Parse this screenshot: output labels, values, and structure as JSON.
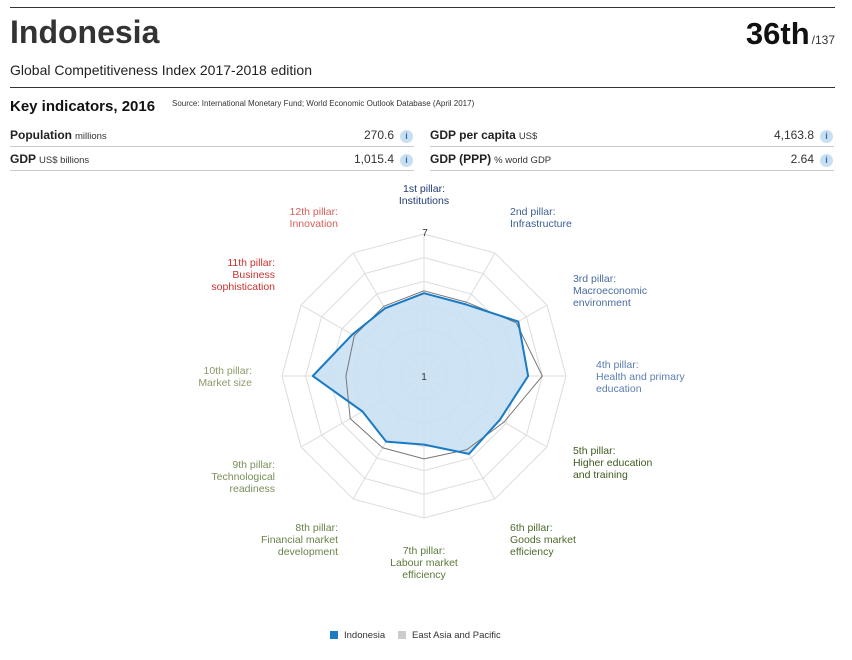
{
  "header": {
    "country": "Indonesia",
    "rank": "36th",
    "rank_total": "/137",
    "subtitle": "Global Competitiveness Index",
    "edition": "2017-2018 edition"
  },
  "key_indicators": {
    "title": "Key indicators, 2016",
    "source": "Source: International Monetary Fund; World Economic Outlook Database (April 2017)",
    "items": [
      {
        "label": "Population",
        "unit": "millions",
        "value": "270.6"
      },
      {
        "label": "GDP per capita",
        "unit": "US$",
        "value": "4,163.8"
      },
      {
        "label": "GDP",
        "unit": "US$ billions",
        "value": "1,015.4"
      },
      {
        "label": "GDP (PPP)",
        "unit": "% world GDP",
        "value": "2.64"
      }
    ],
    "info_icon": "i"
  },
  "chart_data": {
    "type": "radar",
    "axis_min": 1,
    "axis_max": 7,
    "axis_min_label": "1",
    "axis_max_label": "7",
    "categories": [
      {
        "lines": [
          "1st pillar:",
          "Institutions"
        ],
        "color": "#1f3b73"
      },
      {
        "lines": [
          "2nd pillar:",
          "Infrastructure"
        ],
        "color": "#3d5d95"
      },
      {
        "lines": [
          "3rd pillar:",
          "Macroeconomic",
          "environment"
        ],
        "color": "#4a6c9e"
      },
      {
        "lines": [
          "4th pillar:",
          "Health and primary",
          "education"
        ],
        "color": "#5a7fb1"
      },
      {
        "lines": [
          "5th pillar:",
          "Higher education",
          "and training"
        ],
        "color": "#3e5a1f"
      },
      {
        "lines": [
          "6th pillar:",
          "Goods market",
          "efficiency"
        ],
        "color": "#4c6a2b"
      },
      {
        "lines": [
          "7th pillar:",
          "Labour market",
          "efficiency"
        ],
        "color": "#5c7a3a"
      },
      {
        "lines": [
          "8th pillar:",
          "Financial market",
          "development"
        ],
        "color": "#6a834a"
      },
      {
        "lines": [
          "9th pillar:",
          "Technological",
          "readiness"
        ],
        "color": "#7a8f5a"
      },
      {
        "lines": [
          "10th pillar:",
          "Market size"
        ],
        "color": "#8a9a6a"
      },
      {
        "lines": [
          "11th pillar:",
          "Business",
          "sophistication"
        ],
        "color": "#c8332e"
      },
      {
        "lines": [
          "12th pillar:",
          "Innovation"
        ],
        "color": "#d65e58"
      }
    ],
    "series": [
      {
        "name": "Indonesia",
        "values": [
          4.5,
          4.5,
          5.6,
          5.4,
          4.7,
          4.8,
          3.9,
          4.2,
          4.0,
          5.7,
          4.5,
          4.3
        ],
        "color": "#1a7bc4",
        "fill": "#c9e0f3"
      },
      {
        "name": "East Asia and Pacific",
        "values": [
          4.6,
          4.6,
          5.5,
          6.0,
          4.9,
          4.6,
          4.5,
          4.5,
          4.6,
          4.3,
          4.4,
          4.4
        ],
        "color": "#777777"
      }
    ],
    "legend": {
      "position": "bottom-center",
      "items": [
        {
          "label": "Indonesia",
          "color": "#1a7bc4"
        },
        {
          "label": "East Asia and Pacific",
          "color": "#cccccc"
        }
      ]
    },
    "grid": true
  }
}
